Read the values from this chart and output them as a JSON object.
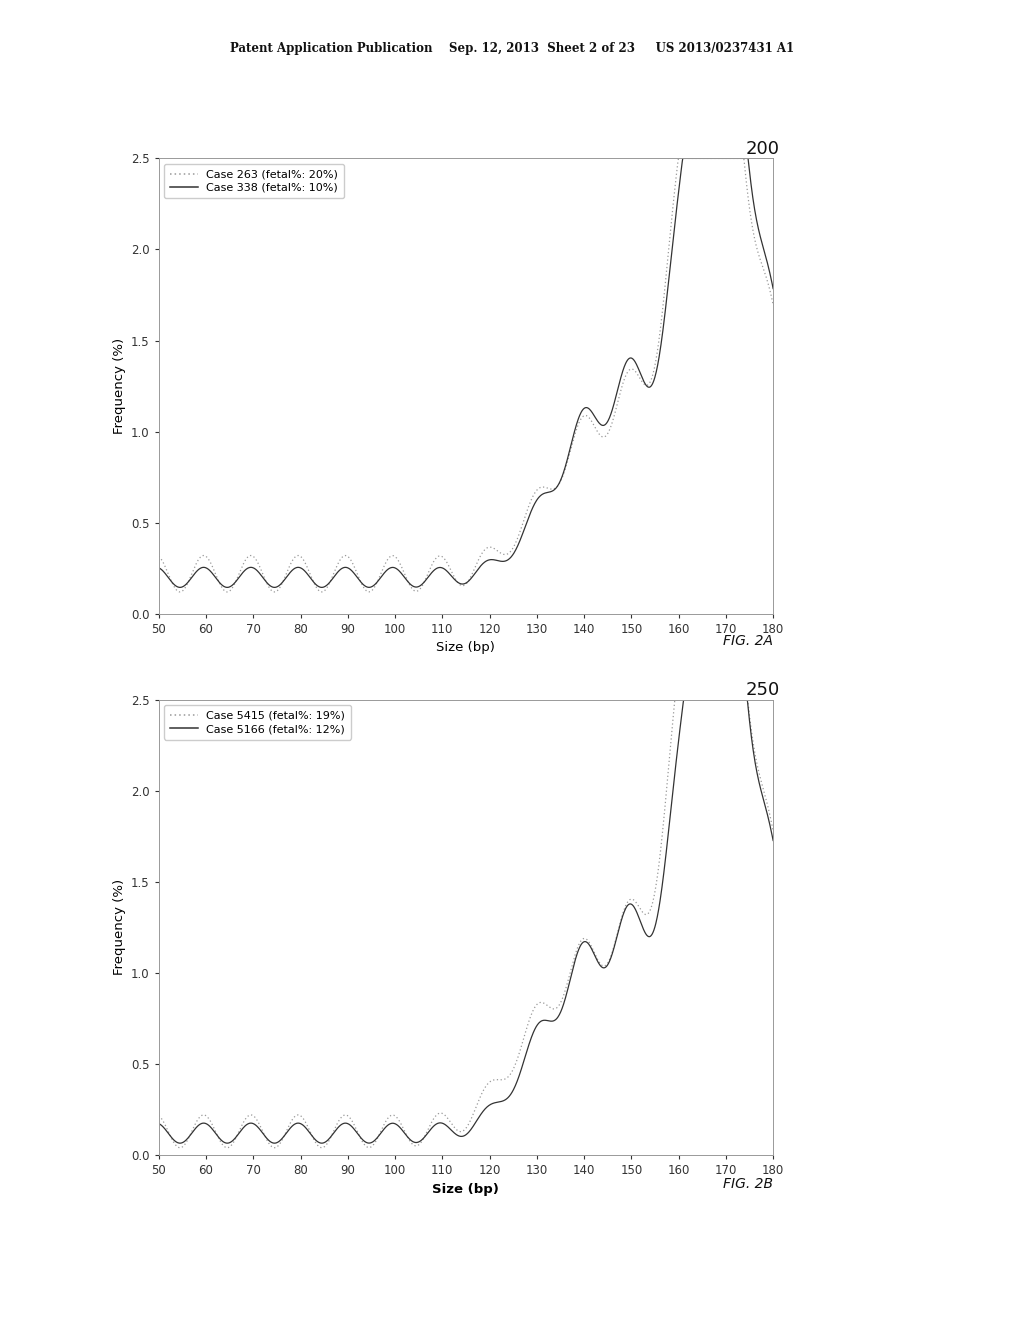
{
  "header_text": "Patent Application Publication    Sep. 12, 2013  Sheet 2 of 23     US 2013/0237431 A1",
  "fig_label_A": "FIG. 2A",
  "fig_label_B": "FIG. 2B",
  "callout_A": "200",
  "callout_B": "250",
  "xlabel": "Size (bp)",
  "ylabel": "Frequency (%)",
  "xlim": [
    50,
    180
  ],
  "ylim": [
    0.0,
    2.5
  ],
  "xticks": [
    50,
    60,
    70,
    80,
    90,
    100,
    110,
    120,
    130,
    140,
    150,
    160,
    170,
    180
  ],
  "yticks": [
    0.0,
    0.5,
    1.0,
    1.5,
    2.0,
    2.5
  ],
  "legend_A": [
    "Case 263 (fetal%: 20%)",
    "Case 338 (fetal%: 10%)"
  ],
  "legend_B": [
    "Case 5415 (fetal%: 19%)",
    "Case 5166 (fetal%: 12%)"
  ],
  "background_color": "#ffffff",
  "line_color_solid": "#333333",
  "line_color_dotted": "#999999"
}
